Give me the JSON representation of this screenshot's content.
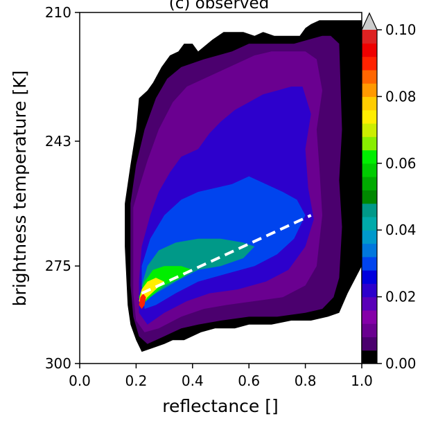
{
  "chart_data": {
    "type": "heatmap",
    "title": "(c) observed",
    "xlabel": "reflectance []",
    "ylabel": "brightness temperature [K]",
    "xlim": [
      0.0,
      1.0
    ],
    "ylim_inverted": [
      210,
      300
    ],
    "x_ticks": [
      "0.0",
      "0.2",
      "0.4",
      "0.6",
      "0.8",
      "1.0"
    ],
    "y_ticks": [
      "210",
      "243",
      "275",
      "300"
    ],
    "x_tick_values": [
      0.0,
      0.2,
      0.4,
      0.6,
      0.8,
      1.0
    ],
    "y_tick_values": [
      210,
      243,
      275,
      300
    ],
    "colorbar": {
      "ticks": [
        "0.00",
        "0.02",
        "0.04",
        "0.06",
        "0.08",
        "0.10"
      ],
      "tick_values": [
        0.0,
        0.02,
        0.04,
        0.06,
        0.08,
        0.1
      ],
      "range": [
        0.0,
        0.1
      ],
      "extend": "max",
      "colors": [
        "#000000",
        "#4b006e",
        "#6a0090",
        "#8500a8",
        "#5a00b8",
        "#2d00cc",
        "#0000dd",
        "#0044ee",
        "#0077dd",
        "#0099cc",
        "#00aaaa",
        "#009988",
        "#008800",
        "#00aa00",
        "#00cc00",
        "#00ee00",
        "#88ee00",
        "#ccee00",
        "#ffee00",
        "#ffcc00",
        "#ff9900",
        "#ff6600",
        "#ff2200",
        "#ee0000",
        "#dd2222"
      ],
      "over_color": "#cccccc"
    },
    "contours": [
      {
        "level": 0.0,
        "points": [
          [
            0.16,
            259
          ],
          [
            0.17,
            254
          ],
          [
            0.18,
            249
          ],
          [
            0.2,
            240
          ],
          [
            0.21,
            232
          ],
          [
            0.24,
            230
          ],
          [
            0.26,
            228
          ],
          [
            0.29,
            224
          ],
          [
            0.32,
            221
          ],
          [
            0.35,
            220
          ],
          [
            0.37,
            218
          ],
          [
            0.4,
            218
          ],
          [
            0.42,
            220
          ],
          [
            0.47,
            217
          ],
          [
            0.51,
            215
          ],
          [
            0.54,
            215
          ],
          [
            0.58,
            215
          ],
          [
            0.62,
            216
          ],
          [
            0.65,
            215
          ],
          [
            0.69,
            216
          ],
          [
            0.71,
            216
          ],
          [
            0.75,
            216
          ],
          [
            0.78,
            216
          ],
          [
            0.8,
            214
          ],
          [
            0.82,
            213
          ],
          [
            0.85,
            212
          ],
          [
            0.87,
            212
          ],
          [
            1.0,
            212
          ],
          [
            1.0,
            275
          ],
          [
            0.95,
            282
          ],
          [
            0.92,
            287
          ],
          [
            0.88,
            288
          ],
          [
            0.82,
            289
          ],
          [
            0.75,
            289
          ],
          [
            0.68,
            290
          ],
          [
            0.6,
            290
          ],
          [
            0.55,
            291
          ],
          [
            0.48,
            291
          ],
          [
            0.43,
            292
          ],
          [
            0.37,
            294
          ],
          [
            0.33,
            294
          ],
          [
            0.3,
            295
          ],
          [
            0.26,
            296
          ],
          [
            0.22,
            297
          ],
          [
            0.2,
            294
          ],
          [
            0.18,
            290
          ],
          [
            0.17,
            285
          ],
          [
            0.16,
            270
          ]
        ]
      },
      {
        "level": 0.005,
        "points": [
          [
            0.18,
            259
          ],
          [
            0.19,
            254
          ],
          [
            0.2,
            249
          ],
          [
            0.23,
            240
          ],
          [
            0.27,
            232
          ],
          [
            0.31,
            227
          ],
          [
            0.36,
            224
          ],
          [
            0.4,
            223
          ],
          [
            0.44,
            222
          ],
          [
            0.49,
            221
          ],
          [
            0.54,
            220
          ],
          [
            0.6,
            218
          ],
          [
            0.65,
            218
          ],
          [
            0.71,
            218
          ],
          [
            0.76,
            218
          ],
          [
            0.81,
            217
          ],
          [
            0.86,
            216
          ],
          [
            0.89,
            216
          ],
          [
            0.92,
            218
          ],
          [
            0.93,
            240
          ],
          [
            0.92,
            253
          ],
          [
            0.93,
            265
          ],
          [
            0.92,
            278
          ],
          [
            0.9,
            283
          ],
          [
            0.86,
            286
          ],
          [
            0.8,
            287
          ],
          [
            0.7,
            288
          ],
          [
            0.6,
            288
          ],
          [
            0.5,
            289
          ],
          [
            0.42,
            290
          ],
          [
            0.36,
            291
          ],
          [
            0.3,
            293
          ],
          [
            0.24,
            295
          ],
          [
            0.21,
            293
          ],
          [
            0.19,
            288
          ],
          [
            0.18,
            280
          ]
        ]
      },
      {
        "level": 0.01,
        "points": [
          [
            0.19,
            260
          ],
          [
            0.21,
            255
          ],
          [
            0.24,
            248
          ],
          [
            0.28,
            240
          ],
          [
            0.33,
            233
          ],
          [
            0.38,
            229
          ],
          [
            0.44,
            227
          ],
          [
            0.5,
            225
          ],
          [
            0.56,
            223
          ],
          [
            0.62,
            221
          ],
          [
            0.68,
            220
          ],
          [
            0.74,
            220
          ],
          [
            0.8,
            220
          ],
          [
            0.84,
            222
          ],
          [
            0.86,
            230
          ],
          [
            0.84,
            240
          ],
          [
            0.85,
            250
          ],
          [
            0.86,
            262
          ],
          [
            0.84,
            275
          ],
          [
            0.8,
            280
          ],
          [
            0.72,
            283
          ],
          [
            0.62,
            284
          ],
          [
            0.52,
            285
          ],
          [
            0.44,
            286
          ],
          [
            0.36,
            288
          ],
          [
            0.28,
            291
          ],
          [
            0.23,
            292
          ],
          [
            0.2,
            289
          ],
          [
            0.19,
            282
          ]
        ]
      },
      {
        "level": 0.02,
        "points": [
          [
            0.22,
            270
          ],
          [
            0.25,
            262
          ],
          [
            0.28,
            256
          ],
          [
            0.32,
            251
          ],
          [
            0.36,
            247
          ],
          [
            0.42,
            245
          ],
          [
            0.46,
            241
          ],
          [
            0.5,
            238
          ],
          [
            0.55,
            235
          ],
          [
            0.6,
            233
          ],
          [
            0.65,
            231
          ],
          [
            0.7,
            230
          ],
          [
            0.75,
            229
          ],
          [
            0.79,
            229
          ],
          [
            0.82,
            236
          ],
          [
            0.8,
            245
          ],
          [
            0.81,
            255
          ],
          [
            0.83,
            263
          ],
          [
            0.8,
            270
          ],
          [
            0.74,
            276
          ],
          [
            0.66,
            279
          ],
          [
            0.56,
            281
          ],
          [
            0.46,
            282
          ],
          [
            0.38,
            284
          ],
          [
            0.3,
            287
          ],
          [
            0.24,
            290
          ],
          [
            0.21,
            287
          ],
          [
            0.21,
            279
          ]
        ]
      },
      {
        "level": 0.03,
        "points": [
          [
            0.22,
            275
          ],
          [
            0.25,
            268
          ],
          [
            0.3,
            262
          ],
          [
            0.36,
            258
          ],
          [
            0.42,
            256
          ],
          [
            0.48,
            255
          ],
          [
            0.54,
            254
          ],
          [
            0.6,
            252
          ],
          [
            0.66,
            254
          ],
          [
            0.72,
            256
          ],
          [
            0.77,
            258
          ],
          [
            0.8,
            262
          ],
          [
            0.76,
            268
          ],
          [
            0.7,
            272
          ],
          [
            0.62,
            275
          ],
          [
            0.52,
            277
          ],
          [
            0.42,
            279
          ],
          [
            0.34,
            282
          ],
          [
            0.27,
            285
          ],
          [
            0.23,
            286
          ],
          [
            0.22,
            281
          ]
        ]
      },
      {
        "level": 0.045,
        "points": [
          [
            0.22,
            280
          ],
          [
            0.24,
            275
          ],
          [
            0.28,
            271
          ],
          [
            0.34,
            269
          ],
          [
            0.42,
            268
          ],
          [
            0.5,
            268
          ],
          [
            0.58,
            269
          ],
          [
            0.62,
            270
          ],
          [
            0.58,
            273
          ],
          [
            0.5,
            275
          ],
          [
            0.42,
            276
          ],
          [
            0.34,
            279
          ],
          [
            0.27,
            282
          ],
          [
            0.23,
            284
          ]
        ]
      },
      {
        "level": 0.06,
        "points": [
          [
            0.21,
            283
          ],
          [
            0.23,
            279
          ],
          [
            0.26,
            276
          ],
          [
            0.3,
            275
          ],
          [
            0.36,
            275
          ],
          [
            0.4,
            276
          ],
          [
            0.36,
            278
          ],
          [
            0.3,
            280
          ],
          [
            0.25,
            283
          ],
          [
            0.22,
            285
          ]
        ]
      },
      {
        "level": 0.075,
        "points": [
          [
            0.21,
            284
          ],
          [
            0.22,
            281
          ],
          [
            0.24,
            279
          ],
          [
            0.27,
            278
          ],
          [
            0.3,
            279
          ],
          [
            0.27,
            281
          ],
          [
            0.24,
            283
          ],
          [
            0.22,
            285
          ]
        ]
      },
      {
        "level": 0.09,
        "points": [
          [
            0.21,
            285
          ],
          [
            0.215,
            283
          ],
          [
            0.225,
            282
          ],
          [
            0.235,
            283
          ],
          [
            0.23,
            285
          ],
          [
            0.22,
            286
          ]
        ]
      }
    ],
    "fit_line": {
      "style": "dashed",
      "color": "#ffffff",
      "points": [
        [
          0.22,
          282
        ],
        [
          0.82,
          262
        ]
      ]
    }
  }
}
